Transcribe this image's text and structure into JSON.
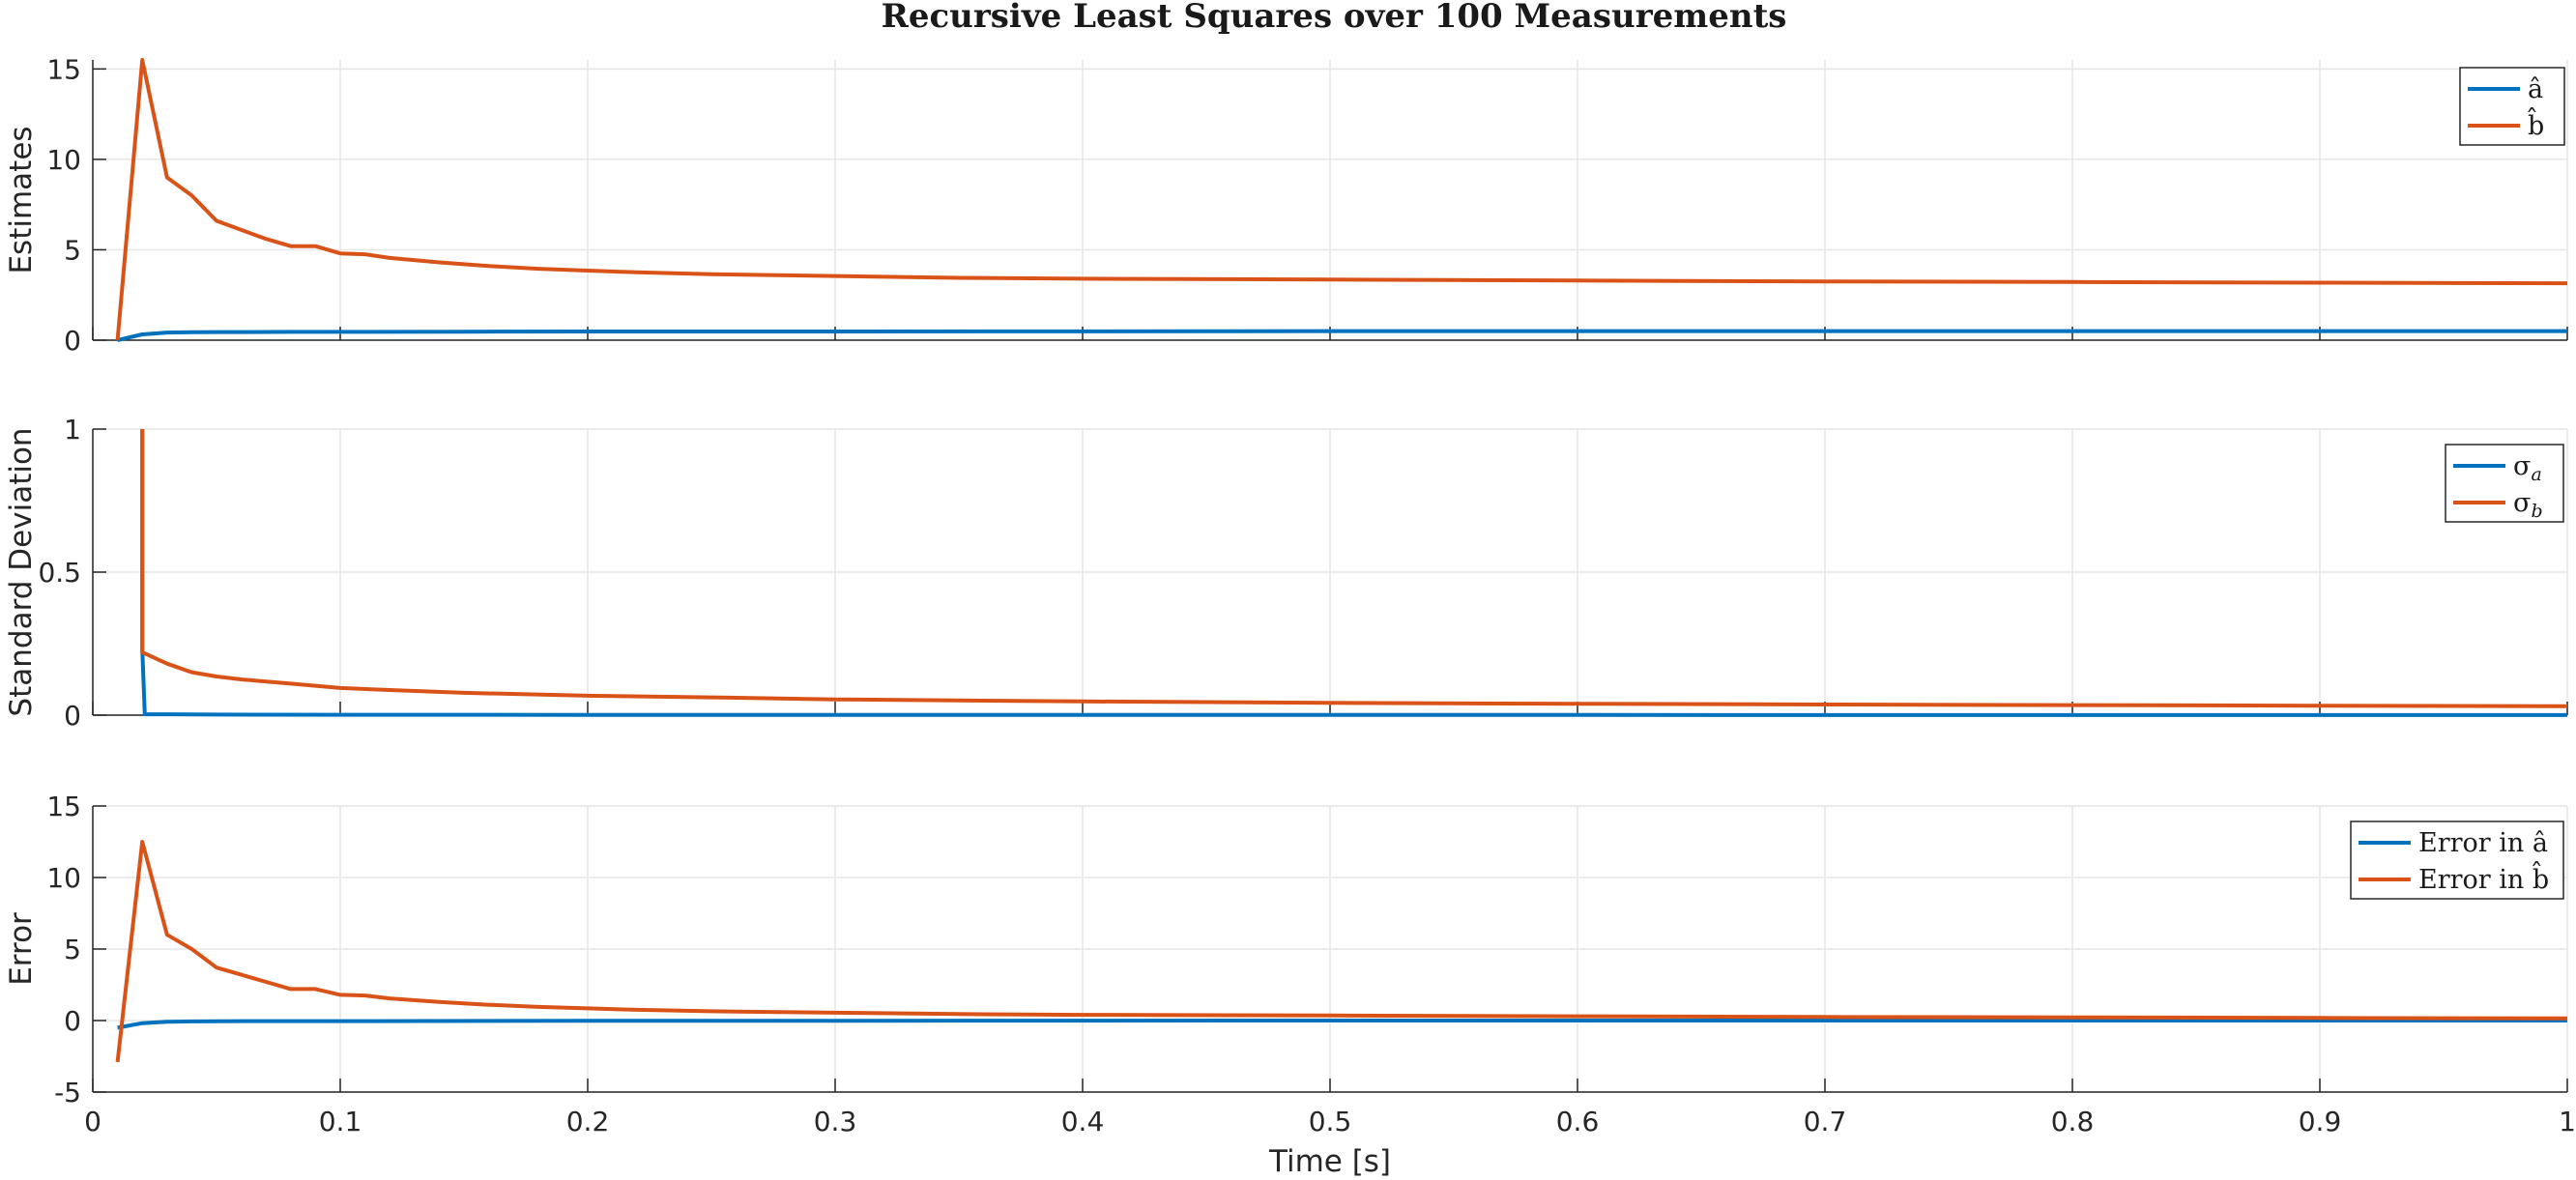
{
  "chart_data": {
    "type": "line",
    "title": "Recursive Least Squares over 100 Measurements",
    "xlabel": "Time [s]",
    "colors": {
      "series1": "#0072BD",
      "series2": "#D95319",
      "grid": "#e6e6e6",
      "axis": "#262626"
    },
    "grid": true,
    "legend_position": "top-right",
    "xlim": [
      0,
      1
    ],
    "x_ticks": [
      "0",
      "0.1",
      "0.2",
      "0.3",
      "0.4",
      "0.5",
      "0.6",
      "0.7",
      "0.8",
      "0.9",
      "1"
    ],
    "subplots": [
      {
        "ylabel": "Estimates",
        "ylim": [
          0,
          15.5
        ],
        "y_tick_values": [
          0,
          5,
          10,
          15
        ],
        "y_ticks": [
          "0",
          "5",
          "10",
          "15"
        ],
        "series": [
          {
            "legend": {
              "main": "â"
            },
            "x": [
              0.01,
              0.02,
              0.03,
              0.04,
              0.05,
              0.06,
              0.08,
              0.1,
              0.15,
              0.2,
              0.3,
              0.45,
              0.5,
              0.6,
              0.7,
              0.8,
              0.9,
              1.0
            ],
            "y": [
              0.0,
              0.32,
              0.42,
              0.44,
              0.45,
              0.45,
              0.46,
              0.46,
              0.47,
              0.48,
              0.48,
              0.49,
              0.5,
              0.5,
              0.5,
              0.5,
              0.5,
              0.5
            ]
          },
          {
            "legend": {
              "main": "b̂"
            },
            "x": [
              0.01,
              0.02,
              0.03,
              0.04,
              0.05,
              0.06,
              0.07,
              0.08,
              0.09,
              0.1,
              0.11,
              0.12,
              0.14,
              0.16,
              0.18,
              0.2,
              0.22,
              0.25,
              0.3,
              0.35,
              0.4,
              0.5,
              0.6,
              0.7,
              0.8,
              0.9,
              1.0
            ],
            "y": [
              0.0,
              15.5,
              9.0,
              8.0,
              6.6,
              6.1,
              5.6,
              5.2,
              5.2,
              4.8,
              4.75,
              4.55,
              4.3,
              4.1,
              3.95,
              3.85,
              3.75,
              3.65,
              3.55,
              3.45,
              3.4,
              3.35,
              3.3,
              3.25,
              3.22,
              3.18,
              3.15
            ]
          }
        ]
      },
      {
        "ylabel": "Standard Deviation",
        "ylim": [
          0,
          1
        ],
        "y_tick_values": [
          0,
          0.5,
          1
        ],
        "y_ticks": [
          "0",
          "0.5",
          "1"
        ],
        "series": [
          {
            "legend": {
              "main": "σ",
              "sub": "a"
            },
            "x": [
              0.02,
              0.02,
              0.021,
              0.03,
              0.05,
              0.1,
              0.2,
              1.0
            ],
            "y": [
              1.0,
              0.23,
              0.003,
              0.003,
              0.002,
              0.0015,
              0.001,
              0.0005
            ]
          },
          {
            "legend": {
              "main": "σ",
              "sub": "b"
            },
            "x": [
              0.02,
              0.02,
              0.03,
              0.04,
              0.05,
              0.06,
              0.08,
              0.1,
              0.12,
              0.15,
              0.2,
              0.25,
              0.3,
              0.4,
              0.5,
              0.6,
              0.7,
              0.8,
              0.9,
              1.0
            ],
            "y": [
              1.0,
              0.22,
              0.18,
              0.15,
              0.135,
              0.125,
              0.11,
              0.095,
              0.088,
              0.078,
              0.068,
              0.062,
              0.055,
              0.048,
              0.043,
              0.04,
              0.037,
              0.035,
              0.033,
              0.031
            ]
          }
        ]
      },
      {
        "ylabel": "Error",
        "xlabel": "Time [s]",
        "ylim": [
          -5,
          15
        ],
        "y_tick_values": [
          -5,
          0,
          5,
          10,
          15
        ],
        "y_ticks": [
          "-5",
          "0",
          "5",
          "10",
          "15"
        ],
        "series": [
          {
            "legend": {
              "main": "Error in â"
            },
            "x": [
              0.01,
              0.02,
              0.03,
              0.04,
              0.05,
              0.1,
              0.2,
              0.5,
              1.0
            ],
            "y": [
              -0.5,
              -0.18,
              -0.08,
              -0.06,
              -0.05,
              -0.04,
              -0.02,
              0.0,
              0.0
            ]
          },
          {
            "legend": {
              "main": "Error in b̂"
            },
            "x": [
              0.01,
              0.02,
              0.03,
              0.04,
              0.05,
              0.06,
              0.07,
              0.08,
              0.09,
              0.1,
              0.11,
              0.12,
              0.14,
              0.16,
              0.18,
              0.2,
              0.22,
              0.25,
              0.3,
              0.35,
              0.4,
              0.5,
              0.6,
              0.7,
              0.8,
              0.9,
              1.0
            ],
            "y": [
              -2.9,
              12.5,
              6.0,
              5.0,
              3.7,
              3.2,
              2.7,
              2.2,
              2.2,
              1.8,
              1.75,
              1.55,
              1.3,
              1.1,
              0.95,
              0.85,
              0.75,
              0.65,
              0.55,
              0.45,
              0.4,
              0.35,
              0.3,
              0.25,
              0.22,
              0.18,
              0.15
            ]
          }
        ]
      }
    ]
  }
}
